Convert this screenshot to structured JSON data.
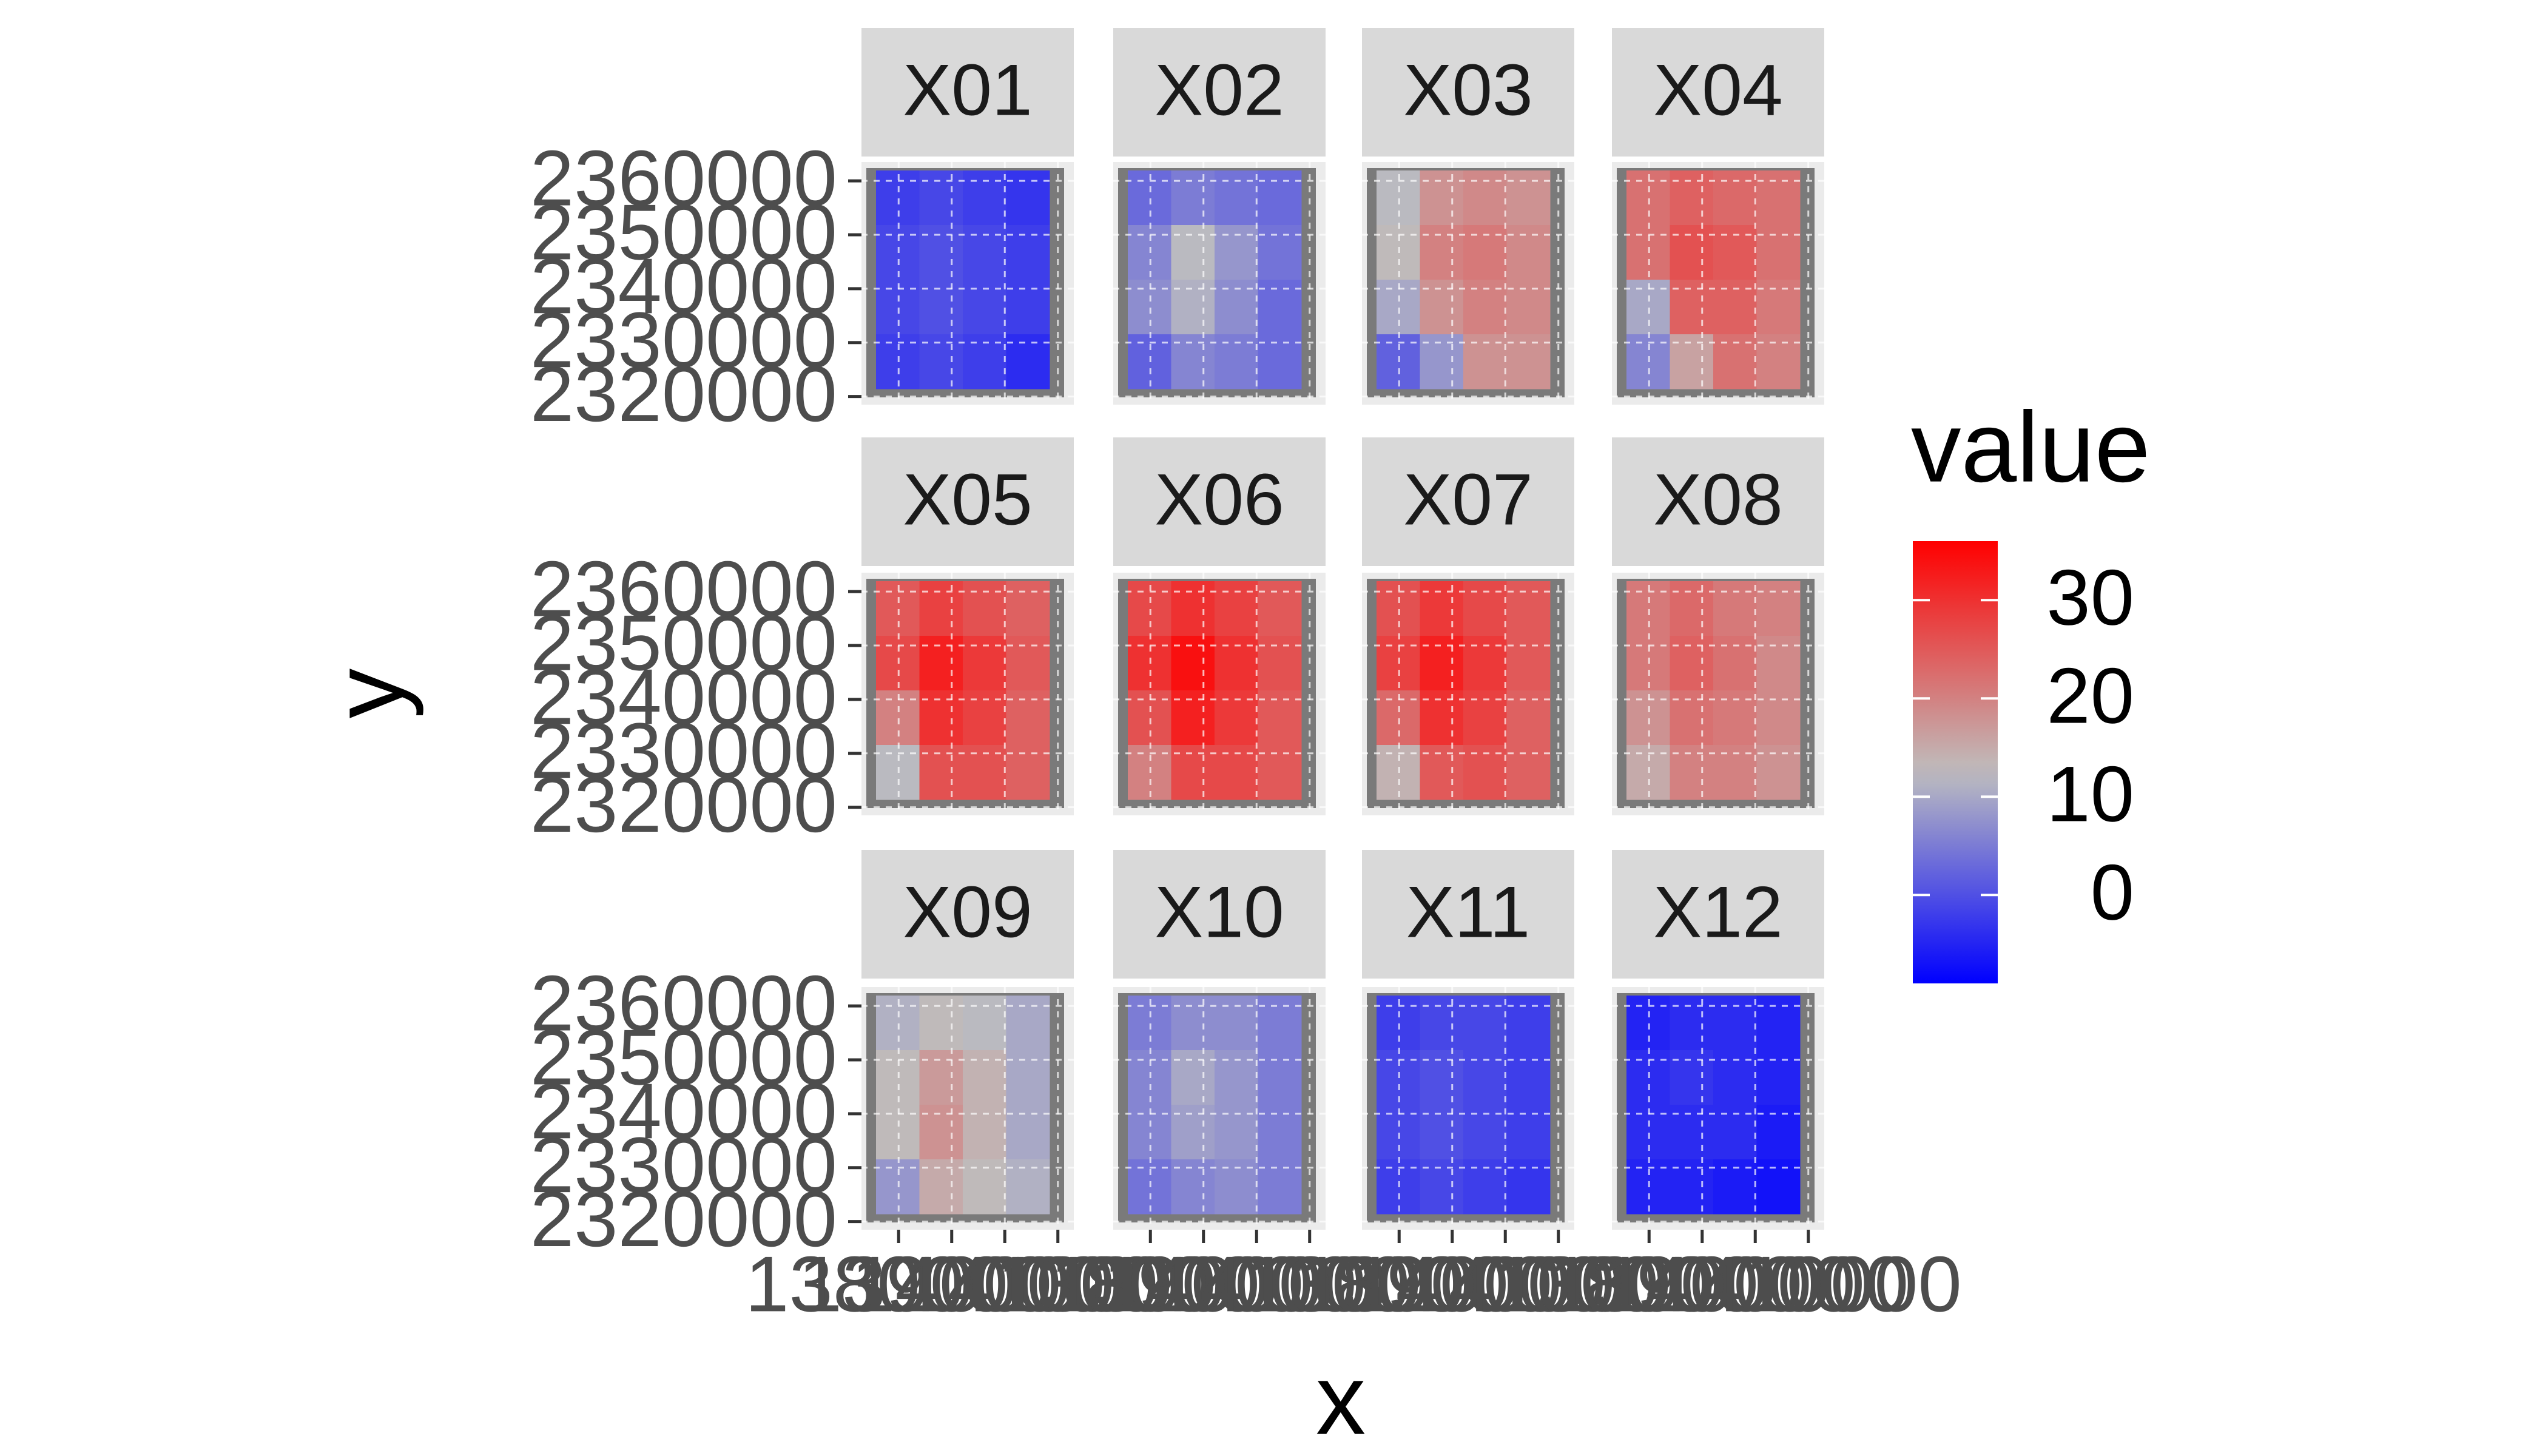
{
  "chart_data": {
    "type": "faceted-raster",
    "x_label": "x",
    "y_label": "y",
    "xlim": [
      1373000,
      1413000
    ],
    "xticks": [
      1380000,
      1390000,
      1400000,
      1410000
    ],
    "ylim": [
      2318500,
      2363500
    ],
    "yticks": [
      2320000,
      2330000,
      2340000,
      2350000,
      2360000
    ],
    "grid": true,
    "color_scale": {
      "title": "value",
      "low": "#0000ff",
      "mid": "#bebebe",
      "high": "#ff0000",
      "midpoint": 12.5,
      "limits": [
        -9,
        36
      ],
      "ticks": [
        0,
        10,
        20,
        30
      ]
    },
    "panels": [
      {
        "name": "X01",
        "values": [
          [
            -2,
            -1,
            -2,
            -3
          ],
          [
            -1,
            0,
            -1,
            -2
          ],
          [
            -1,
            0,
            -1,
            -2
          ],
          [
            -2,
            -1,
            -2,
            -4
          ]
        ]
      },
      {
        "name": "X02",
        "values": [
          [
            3,
            5,
            4,
            3
          ],
          [
            6,
            12,
            8,
            4
          ],
          [
            7,
            11,
            7,
            3
          ],
          [
            2,
            6,
            5,
            3
          ]
        ]
      },
      {
        "name": "X03",
        "values": [
          [
            12,
            18,
            19,
            18
          ],
          [
            13,
            20,
            21,
            19
          ],
          [
            10,
            18,
            20,
            19
          ],
          [
            2,
            8,
            18,
            18
          ]
        ]
      },
      {
        "name": "X04",
        "values": [
          [
            22,
            24,
            23,
            22
          ],
          [
            22,
            26,
            25,
            22
          ],
          [
            10,
            24,
            24,
            21
          ],
          [
            6,
            16,
            22,
            20
          ]
        ]
      },
      {
        "name": "X05",
        "values": [
          [
            25,
            28,
            26,
            24
          ],
          [
            27,
            32,
            29,
            25
          ],
          [
            20,
            30,
            28,
            24
          ],
          [
            12,
            26,
            26,
            24
          ]
        ]
      },
      {
        "name": "X06",
        "values": [
          [
            27,
            30,
            28,
            25
          ],
          [
            30,
            34,
            30,
            26
          ],
          [
            26,
            32,
            29,
            25
          ],
          [
            20,
            27,
            27,
            25
          ]
        ]
      },
      {
        "name": "X07",
        "values": [
          [
            26,
            29,
            27,
            25
          ],
          [
            28,
            32,
            29,
            25
          ],
          [
            23,
            30,
            28,
            24
          ],
          [
            14,
            25,
            26,
            24
          ]
        ]
      },
      {
        "name": "X08",
        "values": [
          [
            21,
            23,
            21,
            20
          ],
          [
            21,
            24,
            22,
            19
          ],
          [
            18,
            22,
            21,
            19
          ],
          [
            15,
            20,
            20,
            18
          ]
        ]
      },
      {
        "name": "X09",
        "values": [
          [
            11,
            13,
            12,
            10
          ],
          [
            13,
            17,
            14,
            10
          ],
          [
            13,
            18,
            14,
            10
          ],
          [
            8,
            15,
            13,
            11
          ]
        ]
      },
      {
        "name": "X10",
        "values": [
          [
            5,
            7,
            7,
            5
          ],
          [
            6,
            10,
            8,
            5
          ],
          [
            6,
            9,
            8,
            5
          ],
          [
            4,
            6,
            7,
            5
          ]
        ]
      },
      {
        "name": "X11",
        "values": [
          [
            -2,
            -1,
            -1,
            -2
          ],
          [
            -1,
            0,
            -1,
            -2
          ],
          [
            -1,
            0,
            -1,
            -2
          ],
          [
            -2,
            -1,
            -2,
            -3
          ]
        ]
      },
      {
        "name": "X12",
        "values": [
          [
            -5,
            -4,
            -4,
            -5
          ],
          [
            -4,
            -3,
            -4,
            -5
          ],
          [
            -4,
            -4,
            -4,
            -6
          ],
          [
            -5,
            -5,
            -6,
            -7
          ]
        ]
      }
    ]
  }
}
